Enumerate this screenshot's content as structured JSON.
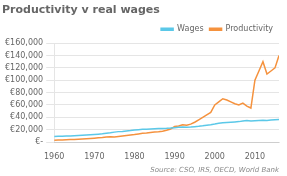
{
  "chart_data": {
    "type": "line",
    "title": "Productivity v real wages",
    "annotation": "Source: CSO, IRS, OECD, World Bank",
    "legend": "top",
    "grid": "y",
    "x": [
      1960,
      1961,
      1962,
      1963,
      1964,
      1965,
      1966,
      1967,
      1968,
      1969,
      1970,
      1971,
      1972,
      1973,
      1974,
      1975,
      1976,
      1977,
      1978,
      1979,
      1980,
      1981,
      1982,
      1983,
      1984,
      1985,
      1986,
      1987,
      1988,
      1989,
      1990,
      1991,
      1992,
      1993,
      1994,
      1995,
      1996,
      1997,
      1998,
      1999,
      2000,
      2001,
      2002,
      2003,
      2004,
      2005,
      2006,
      2007,
      2008,
      2009,
      2010,
      2011,
      2012,
      2013,
      2014,
      2015,
      2016
    ],
    "series": [
      {
        "name": "Wages",
        "color": "#5bc8e8",
        "values": [
          9000,
          9200,
          9400,
          9600,
          9900,
          10200,
          10600,
          10900,
          11300,
          11700,
          12200,
          12700,
          13300,
          14200,
          15000,
          16000,
          16800,
          17200,
          17800,
          18500,
          19500,
          20000,
          20500,
          20800,
          21200,
          21500,
          21700,
          21900,
          22100,
          22500,
          23200,
          23800,
          24200,
          24000,
          24200,
          24800,
          25400,
          26200,
          27200,
          28000,
          29000,
          30200,
          31000,
          31500,
          32000,
          32500,
          33000,
          34000,
          35000,
          34000,
          34500,
          35000,
          35200,
          35000,
          35500,
          36000,
          36500
        ]
      },
      {
        "name": "Productivity",
        "color": "#f5923e",
        "values": [
          3000,
          3200,
          3400,
          3600,
          3900,
          4200,
          4600,
          4900,
          5300,
          5700,
          6200,
          6700,
          7200,
          8000,
          8500,
          8200,
          9000,
          9800,
          10500,
          11200,
          12000,
          13000,
          14000,
          14500,
          15500,
          16000,
          16500,
          17500,
          19000,
          21000,
          25000,
          26000,
          28000,
          27000,
          29000,
          32000,
          36000,
          40000,
          44000,
          48000,
          60000,
          65000,
          70000,
          68000,
          65000,
          62000,
          60000,
          63000,
          58000,
          55000,
          100000,
          115000,
          130000,
          110000,
          115000,
          120000,
          140000
        ]
      }
    ],
    "xlim": [
      1960,
      2016
    ],
    "xticks": [
      1960,
      1970,
      1980,
      1990,
      2000,
      2010
    ],
    "ylim": [
      0,
      160000
    ],
    "yticks": [
      {
        "value": 0,
        "label": "€-"
      },
      {
        "value": 20000,
        "label": "€20,000"
      },
      {
        "value": 40000,
        "label": "€40,000"
      },
      {
        "value": 60000,
        "label": "€60,000"
      },
      {
        "value": 80000,
        "label": "€80,000"
      },
      {
        "value": 100000,
        "label": "€100,000"
      },
      {
        "value": 120000,
        "label": "€120,000"
      },
      {
        "value": 140000,
        "label": "€140,000"
      },
      {
        "value": 160000,
        "label": "€160,000"
      }
    ]
  }
}
